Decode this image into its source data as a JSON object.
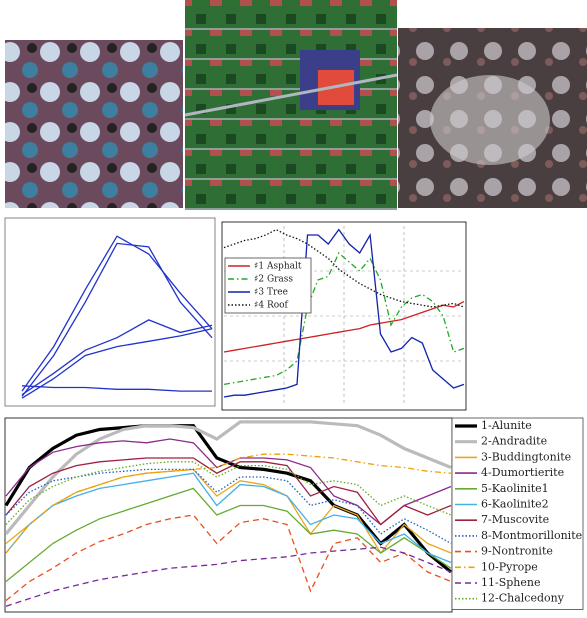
{
  "chart_data": [
    {
      "type": "line",
      "ylim": [
        0,
        1
      ],
      "color": "#2233cc",
      "series": [
        {
          "values": [
            0.05,
            0.3,
            0.62,
            0.92,
            0.82,
            0.6,
            0.4
          ]
        },
        {
          "values": [
            0.02,
            0.25,
            0.55,
            0.88,
            0.86,
            0.55,
            0.35
          ]
        },
        {
          "values": [
            0.03,
            0.15,
            0.28,
            0.35,
            0.45,
            0.38,
            0.42
          ]
        },
        {
          "values": [
            0.01,
            0.12,
            0.25,
            0.3,
            0.33,
            0.36,
            0.4
          ]
        },
        {
          "values": [
            0.08,
            0.07,
            0.07,
            0.06,
            0.06,
            0.05,
            0.05
          ]
        }
      ]
    },
    {
      "type": "line",
      "ylim": [
        0,
        1
      ],
      "grid": true,
      "legend": "upper-left",
      "series": [
        {
          "name": "♯1 Asphalt",
          "color": "#cc2222",
          "dash": "solid",
          "values": [
            0.3,
            0.31,
            0.32,
            0.33,
            0.34,
            0.35,
            0.36,
            0.37,
            0.38,
            0.39,
            0.4,
            0.41,
            0.42,
            0.43,
            0.45,
            0.46,
            0.47,
            0.48,
            0.5,
            0.52,
            0.54,
            0.56,
            0.55,
            0.58
          ]
        },
        {
          "name": "♯2 Grass",
          "color": "#22aa22",
          "dash": "dashdot",
          "values": [
            0.12,
            0.13,
            0.14,
            0.15,
            0.16,
            0.17,
            0.2,
            0.25,
            0.55,
            0.7,
            0.72,
            0.85,
            0.8,
            0.75,
            0.82,
            0.7,
            0.45,
            0.55,
            0.6,
            0.62,
            0.58,
            0.5,
            0.3,
            0.32
          ]
        },
        {
          "name": "♯3 Tree",
          "color": "#1122aa",
          "dash": "solid",
          "values": [
            0.05,
            0.06,
            0.06,
            0.07,
            0.08,
            0.09,
            0.1,
            0.12,
            0.95,
            0.95,
            0.9,
            0.98,
            0.9,
            0.85,
            0.95,
            0.4,
            0.3,
            0.32,
            0.38,
            0.35,
            0.2,
            0.15,
            0.1,
            0.12
          ]
        },
        {
          "name": "♯4 Roof",
          "color": "#111111",
          "dash": "dot",
          "values": [
            0.88,
            0.9,
            0.92,
            0.93,
            0.95,
            0.98,
            0.95,
            0.93,
            0.9,
            0.86,
            0.82,
            0.76,
            0.72,
            0.68,
            0.65,
            0.62,
            0.6,
            0.58,
            0.57,
            0.56,
            0.55,
            0.56,
            0.57,
            0.55
          ]
        }
      ]
    },
    {
      "type": "line",
      "ylim": [
        0,
        1
      ],
      "legend": "right",
      "series": [
        {
          "name": "1-Alunite",
          "color": "#000000",
          "dash": "thick",
          "values": [
            0.55,
            0.75,
            0.85,
            0.92,
            0.95,
            0.96,
            0.97,
            0.97,
            0.97,
            0.8,
            0.75,
            0.74,
            0.72,
            0.68,
            0.55,
            0.5,
            0.35,
            0.45,
            0.3,
            0.2
          ]
        },
        {
          "name": "2-Andradite",
          "color": "#bbbbbb",
          "dash": "thick",
          "values": [
            0.4,
            0.55,
            0.7,
            0.82,
            0.9,
            0.95,
            0.97,
            0.97,
            0.96,
            0.9,
            0.99,
            0.99,
            0.99,
            0.99,
            0.98,
            0.97,
            0.92,
            0.85,
            0.8,
            0.75
          ]
        },
        {
          "name": "3-Buddingtonite",
          "color": "#e8a820",
          "dash": "solid",
          "values": [
            0.35,
            0.45,
            0.55,
            0.62,
            0.66,
            0.7,
            0.72,
            0.73,
            0.74,
            0.6,
            0.68,
            0.66,
            0.6,
            0.4,
            0.55,
            0.5,
            0.3,
            0.45,
            0.35,
            0.3
          ]
        },
        {
          "name": "4-Dumortierite",
          "color": "#8a2a8a",
          "dash": "solid",
          "values": [
            0.6,
            0.75,
            0.83,
            0.86,
            0.88,
            0.89,
            0.88,
            0.9,
            0.88,
            0.75,
            0.8,
            0.8,
            0.79,
            0.75,
            0.6,
            0.55,
            0.45,
            0.55,
            0.6,
            0.65
          ]
        },
        {
          "name": "5-Kaolinite1",
          "color": "#66aa33",
          "dash": "solid",
          "values": [
            0.15,
            0.25,
            0.35,
            0.42,
            0.48,
            0.52,
            0.56,
            0.6,
            0.64,
            0.5,
            0.55,
            0.55,
            0.52,
            0.4,
            0.42,
            0.4,
            0.3,
            0.38,
            0.3,
            0.22
          ]
        },
        {
          "name": "6-Kaolinite2",
          "color": "#44b0e8",
          "dash": "solid",
          "values": [
            0.3,
            0.45,
            0.55,
            0.6,
            0.64,
            0.66,
            0.68,
            0.7,
            0.72,
            0.55,
            0.66,
            0.65,
            0.6,
            0.45,
            0.5,
            0.48,
            0.35,
            0.4,
            0.3,
            0.25
          ]
        },
        {
          "name": "7-Muscovite",
          "color": "#a02040",
          "dash": "solid",
          "values": [
            0.5,
            0.65,
            0.72,
            0.76,
            0.78,
            0.79,
            0.8,
            0.8,
            0.8,
            0.72,
            0.78,
            0.78,
            0.76,
            0.6,
            0.65,
            0.62,
            0.45,
            0.55,
            0.5,
            0.55
          ]
        },
        {
          "name": "8-Montmorillonite",
          "color": "#1f5fbf",
          "dash": "dot",
          "values": [
            0.5,
            0.62,
            0.68,
            0.7,
            0.72,
            0.73,
            0.74,
            0.74,
            0.74,
            0.62,
            0.7,
            0.7,
            0.68,
            0.55,
            0.58,
            0.55,
            0.4,
            0.48,
            0.42,
            0.35
          ]
        },
        {
          "name": "9-Nontronite",
          "color": "#e85020",
          "dash": "dash",
          "values": [
            0.05,
            0.15,
            0.22,
            0.3,
            0.36,
            0.4,
            0.45,
            0.48,
            0.5,
            0.35,
            0.46,
            0.48,
            0.45,
            0.1,
            0.35,
            0.38,
            0.25,
            0.3,
            0.2,
            0.15
          ]
        },
        {
          "name": "10-Pyrope",
          "color": "#f0a000",
          "dash": "dashdot",
          "values": [
            0.3,
            0.45,
            0.55,
            0.62,
            0.66,
            0.7,
            0.72,
            0.73,
            0.74,
            0.75,
            0.8,
            0.82,
            0.82,
            0.81,
            0.8,
            0.78,
            0.76,
            0.75,
            0.73,
            0.72
          ]
        },
        {
          "name": "11-Sphene",
          "color": "#7a2a9a",
          "dash": "dash",
          "values": [
            0.02,
            0.06,
            0.1,
            0.13,
            0.16,
            0.18,
            0.2,
            0.22,
            0.23,
            0.24,
            0.26,
            0.27,
            0.28,
            0.3,
            0.31,
            0.32,
            0.33,
            0.3,
            0.25,
            0.2
          ]
        },
        {
          "name": "12-Chalcedony",
          "color": "#66aa22",
          "dash": "dot",
          "values": [
            0.45,
            0.58,
            0.65,
            0.7,
            0.73,
            0.75,
            0.77,
            0.78,
            0.78,
            0.7,
            0.76,
            0.76,
            0.74,
            0.66,
            0.68,
            0.66,
            0.55,
            0.6,
            0.55,
            0.5
          ]
        }
      ]
    }
  ]
}
